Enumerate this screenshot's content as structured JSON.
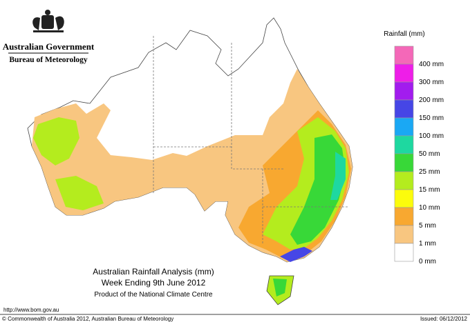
{
  "header": {
    "government": "Australian Government",
    "agency": "Bureau of Meteorology"
  },
  "title": {
    "line1": "Australian Rainfall Analysis (mm)",
    "line2": "Week Ending 9th June 2012",
    "line3": "Product of the National Climate Centre"
  },
  "legend": {
    "title": "Rainfall (mm)",
    "items": [
      {
        "color": "#f468b8",
        "label": "400 mm"
      },
      {
        "color": "#ee1ee8",
        "label": "300 mm"
      },
      {
        "color": "#a21cee",
        "label": "200 mm"
      },
      {
        "color": "#4646e6",
        "label": "150 mm"
      },
      {
        "color": "#1aa8f4",
        "label": "100 mm"
      },
      {
        "color": "#1ed8a0",
        "label": "50 mm"
      },
      {
        "color": "#38d838",
        "label": "25 mm"
      },
      {
        "color": "#b4ec1e",
        "label": "15 mm"
      },
      {
        "color": "#fcfc0c",
        "label": "10 mm"
      },
      {
        "color": "#f8a830",
        "label": "5 mm"
      },
      {
        "color": "#f8c680",
        "label": "1 mm"
      },
      {
        "color": "#ffffff",
        "label": "0 mm"
      }
    ]
  },
  "footer": {
    "url": "http://www.bom.gov.au",
    "copyright": "© Commonwealth of Australia 2012, Australian Bureau of Meteorology",
    "issued": "Issued: 06/12/2012"
  }
}
